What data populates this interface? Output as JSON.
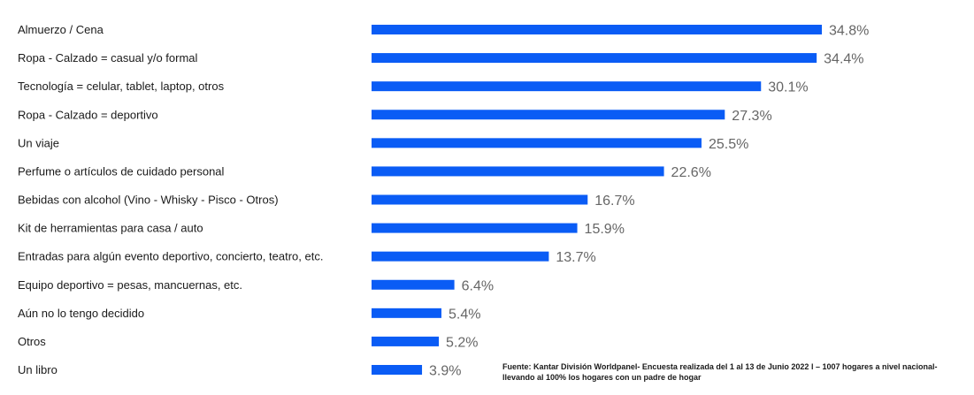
{
  "chart_data": {
    "type": "bar",
    "orientation": "horizontal",
    "categories": [
      "Almuerzo / Cena",
      "Ropa - Calzado = casual y/o formal",
      "Tecnología = celular, tablet, laptop, otros",
      "Ropa - Calzado = deportivo",
      "Un viaje",
      "Perfume o artículos de cuidado personal",
      "Bebidas con alcohol (Vino - Whisky - Pisco - Otros)",
      "Kit de herramientas para casa / auto",
      "Entradas para algún evento deportivo, concierto, teatro, etc.",
      "Equipo deportivo = pesas, mancuernas, etc.",
      "Aún no lo tengo decidido",
      "Otros",
      "Un libro"
    ],
    "values": [
      34.8,
      34.4,
      30.1,
      27.3,
      25.5,
      22.6,
      16.7,
      15.9,
      13.7,
      6.4,
      5.4,
      5.2,
      3.9
    ],
    "value_labels": [
      "34.8%",
      "34.4%",
      "30.1%",
      "27.3%",
      "25.5%",
      "22.6%",
      "16.7%",
      "15.9%",
      "13.7%",
      "6.4%",
      "5.4%",
      "5.2%",
      "3.9%"
    ],
    "xlim": [
      0,
      34.8
    ],
    "grid": false,
    "legend": "none",
    "bar_color": "#0a5cf5"
  },
  "footnote": "Fuente: Kantar División Worldpanel- Encuesta realizada del 1 al 13 de Junio 2022 l – 1007  hogares a nivel nacional- llevando al 100% los hogares con un padre de hogar"
}
